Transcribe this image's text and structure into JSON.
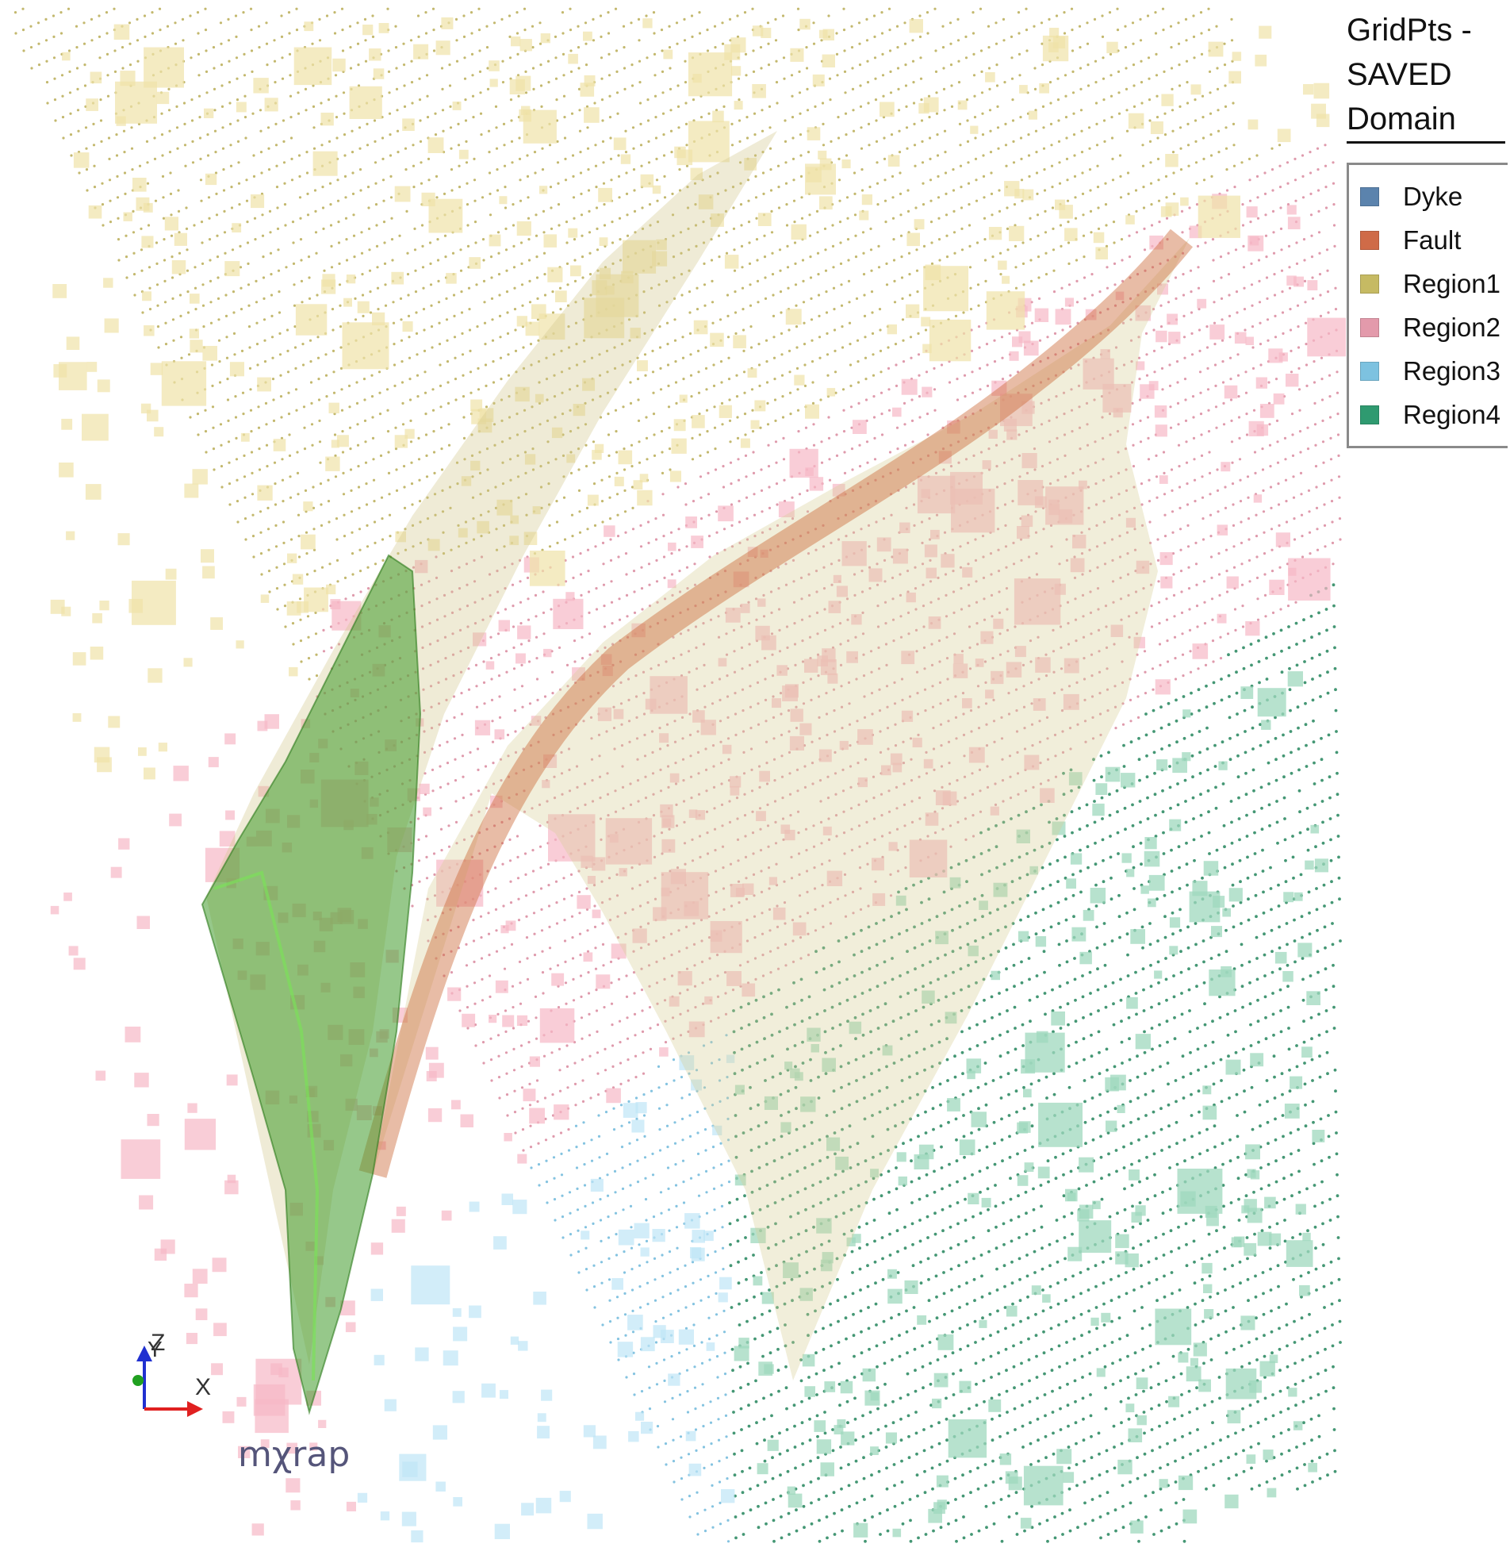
{
  "legend": {
    "title_lines": [
      "GridPts -",
      "SAVED",
      "Domain"
    ],
    "items": [
      {
        "label": "Dyke",
        "color": "#5b83ad"
      },
      {
        "label": "Fault",
        "color": "#cf6b48"
      },
      {
        "label": "Region1",
        "color": "#c6ba63"
      },
      {
        "label": "Region2",
        "color": "#e39aab"
      },
      {
        "label": "Region3",
        "color": "#7dc2e0"
      },
      {
        "label": "Region4",
        "color": "#2f9a70"
      }
    ]
  },
  "axes": {
    "labels": {
      "z": "Z",
      "y": "Y",
      "x": "X"
    },
    "colors": {
      "x": "#e02020",
      "y": "#20a020",
      "z": "#2030d0"
    }
  },
  "logo": {
    "text": "mχrap"
  },
  "scene": {
    "point_colors": {
      "region1": "#b9ac55",
      "region2": "#d9889d",
      "region3": "#6fb8da",
      "region4": "#23855c"
    },
    "block_colors": {
      "region1": "#efe3a8",
      "region2": "#f7b8c6",
      "region3": "#bfe6f6",
      "region4": "#9fd8bd"
    },
    "surface_colors": {
      "dyke": "#3f9a2a",
      "fault": "#d0c78a",
      "fault_edge": "#cc6a3a"
    }
  }
}
